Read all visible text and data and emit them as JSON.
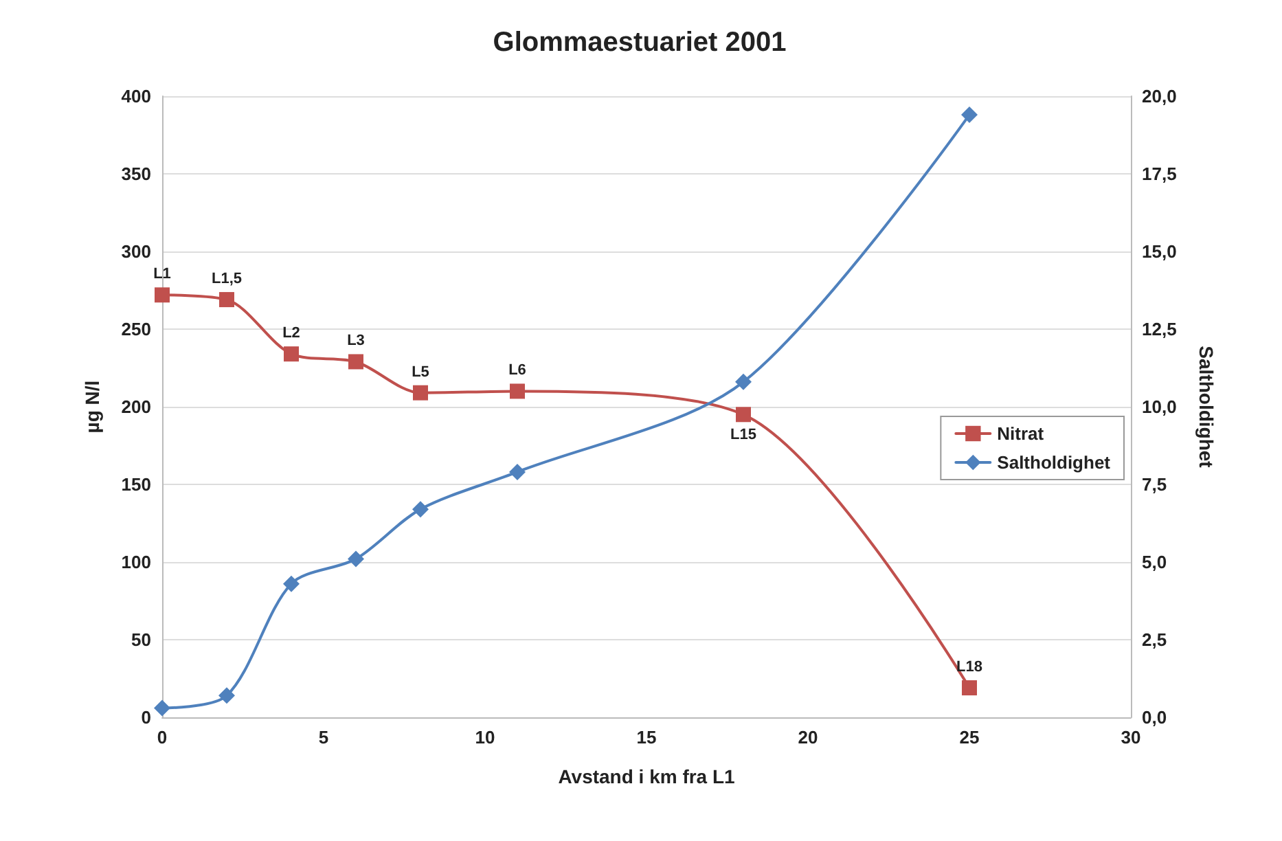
{
  "chart_data": {
    "type": "line",
    "title": "Glommaestuariet 2001",
    "xlabel": "Avstand i km fra L1",
    "ylabel": "µg N/l",
    "y2label": "Saltholdighet",
    "x": [
      0,
      2,
      4,
      6,
      8,
      11,
      18,
      25
    ],
    "series": [
      {
        "name": "Nitrat",
        "color": "#c0504d",
        "marker": "square",
        "values": [
          272,
          269,
          234,
          229,
          209,
          210,
          195,
          19
        ]
      },
      {
        "name": "Saltholdighet",
        "color": "#4f81bd",
        "marker": "diamond",
        "axis": "y2",
        "values": [
          0.3,
          0.7,
          4.3,
          5.1,
          6.7,
          7.9,
          10.8,
          19.4
        ]
      }
    ],
    "xlim": [
      0,
      30
    ],
    "xticks": [
      0,
      5,
      10,
      15,
      20,
      25,
      30
    ],
    "ylim": [
      0,
      400
    ],
    "yticks": [
      0,
      50,
      100,
      150,
      200,
      250,
      300,
      350,
      400
    ],
    "y2lim": [
      0,
      20
    ],
    "y2ticks": [
      {
        "value": 0,
        "label": "0,0"
      },
      {
        "value": 2.5,
        "label": "2,5"
      },
      {
        "value": 5,
        "label": "5,0"
      },
      {
        "value": 7.5,
        "label": "7,5"
      },
      {
        "value": 10,
        "label": "10,0"
      },
      {
        "value": 12.5,
        "label": "12,5"
      },
      {
        "value": 15,
        "label": "15,0"
      },
      {
        "value": 17.5,
        "label": "17,5"
      },
      {
        "value": 20,
        "label": "20,0"
      }
    ],
    "grid": "y",
    "legend": "right",
    "line_style": "solid",
    "annotations": [
      {
        "text": "L1",
        "x": 0,
        "y": 272
      },
      {
        "text": "L1,5",
        "x": 2,
        "y": 269
      },
      {
        "text": "L2",
        "x": 4,
        "y": 234
      },
      {
        "text": "L3",
        "x": 6,
        "y": 229
      },
      {
        "text": "L5",
        "x": 8,
        "y": 209
      },
      {
        "text": "L6",
        "x": 11,
        "y": 210
      },
      {
        "text": "L15",
        "x": 18,
        "y": 195
      },
      {
        "text": "L18",
        "x": 25,
        "y": 19
      }
    ]
  }
}
